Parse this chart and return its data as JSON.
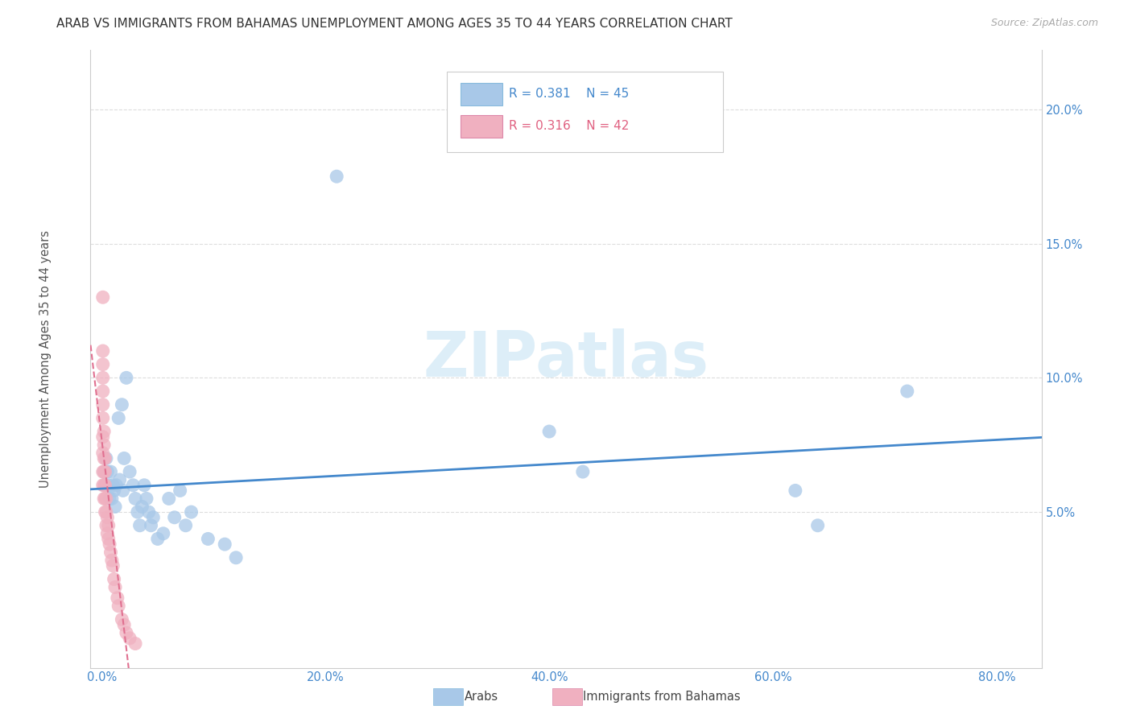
{
  "title": "ARAB VS IMMIGRANTS FROM BAHAMAS UNEMPLOYMENT AMONG AGES 35 TO 44 YEARS CORRELATION CHART",
  "source": "Source: ZipAtlas.com",
  "ylabel": "Unemployment Among Ages 35 to 44 years",
  "arab_r": 0.381,
  "arab_n": 45,
  "imm_r": 0.316,
  "imm_n": 42,
  "arab_color": "#a8c8e8",
  "imm_color": "#f0b0c0",
  "arab_line_color": "#4488cc",
  "imm_line_color": "#e07090",
  "watermark": "ZIPatlas",
  "watermark_color": "#ddeef8",
  "grid_color": "#dddddd",
  "title_fontsize": 11,
  "xlim": [
    -0.01,
    0.84
  ],
  "ylim": [
    -0.008,
    0.222
  ],
  "xlabel_values": [
    0.0,
    0.2,
    0.4,
    0.6,
    0.8
  ],
  "ylabel_values": [
    0.05,
    0.1,
    0.15,
    0.2
  ],
  "arab_scatter": [
    [
      0.002,
      0.065
    ],
    [
      0.003,
      0.06
    ],
    [
      0.004,
      0.07
    ],
    [
      0.005,
      0.065
    ],
    [
      0.006,
      0.06
    ],
    [
      0.007,
      0.055
    ],
    [
      0.008,
      0.065
    ],
    [
      0.009,
      0.055
    ],
    [
      0.01,
      0.06
    ],
    [
      0.011,
      0.058
    ],
    [
      0.012,
      0.052
    ],
    [
      0.013,
      0.06
    ],
    [
      0.015,
      0.085
    ],
    [
      0.016,
      0.062
    ],
    [
      0.018,
      0.09
    ],
    [
      0.019,
      0.058
    ],
    [
      0.02,
      0.07
    ],
    [
      0.022,
      0.1
    ],
    [
      0.025,
      0.065
    ],
    [
      0.028,
      0.06
    ],
    [
      0.03,
      0.055
    ],
    [
      0.032,
      0.05
    ],
    [
      0.034,
      0.045
    ],
    [
      0.036,
      0.052
    ],
    [
      0.038,
      0.06
    ],
    [
      0.04,
      0.055
    ],
    [
      0.042,
      0.05
    ],
    [
      0.044,
      0.045
    ],
    [
      0.046,
      0.048
    ],
    [
      0.05,
      0.04
    ],
    [
      0.055,
      0.042
    ],
    [
      0.06,
      0.055
    ],
    [
      0.065,
      0.048
    ],
    [
      0.07,
      0.058
    ],
    [
      0.075,
      0.045
    ],
    [
      0.08,
      0.05
    ],
    [
      0.095,
      0.04
    ],
    [
      0.11,
      0.038
    ],
    [
      0.12,
      0.033
    ],
    [
      0.21,
      0.175
    ],
    [
      0.4,
      0.08
    ],
    [
      0.43,
      0.065
    ],
    [
      0.62,
      0.058
    ],
    [
      0.64,
      0.045
    ],
    [
      0.72,
      0.095
    ]
  ],
  "imm_scatter": [
    [
      0.001,
      0.065
    ],
    [
      0.001,
      0.072
    ],
    [
      0.001,
      0.078
    ],
    [
      0.001,
      0.085
    ],
    [
      0.001,
      0.09
    ],
    [
      0.001,
      0.095
    ],
    [
      0.001,
      0.1
    ],
    [
      0.001,
      0.105
    ],
    [
      0.001,
      0.11
    ],
    [
      0.001,
      0.06
    ],
    [
      0.002,
      0.055
    ],
    [
      0.002,
      0.06
    ],
    [
      0.002,
      0.065
    ],
    [
      0.002,
      0.07
    ],
    [
      0.002,
      0.075
    ],
    [
      0.002,
      0.08
    ],
    [
      0.003,
      0.05
    ],
    [
      0.003,
      0.055
    ],
    [
      0.003,
      0.06
    ],
    [
      0.003,
      0.065
    ],
    [
      0.003,
      0.07
    ],
    [
      0.004,
      0.045
    ],
    [
      0.004,
      0.05
    ],
    [
      0.004,
      0.055
    ],
    [
      0.005,
      0.042
    ],
    [
      0.005,
      0.048
    ],
    [
      0.006,
      0.04
    ],
    [
      0.006,
      0.045
    ],
    [
      0.007,
      0.038
    ],
    [
      0.008,
      0.035
    ],
    [
      0.009,
      0.032
    ],
    [
      0.01,
      0.03
    ],
    [
      0.011,
      0.025
    ],
    [
      0.012,
      0.022
    ],
    [
      0.014,
      0.018
    ],
    [
      0.015,
      0.015
    ],
    [
      0.018,
      0.01
    ],
    [
      0.02,
      0.008
    ],
    [
      0.022,
      0.005
    ],
    [
      0.025,
      0.003
    ],
    [
      0.001,
      0.13
    ],
    [
      0.03,
      0.001
    ]
  ]
}
